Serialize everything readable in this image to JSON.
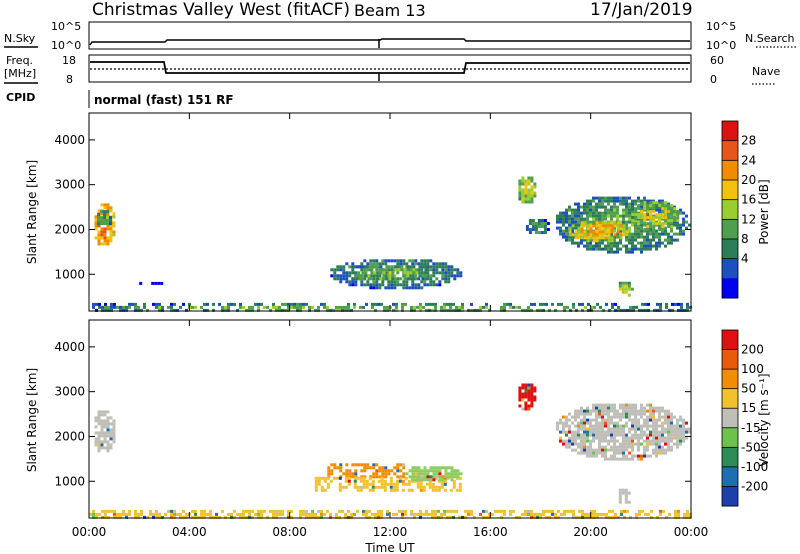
{
  "header": {
    "title": "Christmas Valley West (fitACF)",
    "beam": "Beam 13",
    "date": "17/Jan/2019"
  },
  "status_panels": {
    "nsky_label": "N.Sky",
    "nsearch_label": "N.Search",
    "noise_ticks": [
      "10^5",
      "10^0"
    ],
    "freq_label_1": "Freq.",
    "freq_label_2": "[MHz]",
    "freq_ticks": [
      "18",
      "8"
    ],
    "nave_label": "Nave",
    "nave_ticks": [
      "60",
      "0"
    ],
    "cpid_label": "CPID",
    "cpid_text": "normal (fast) 151 RF"
  },
  "chart_data": [
    {
      "type": "heatmap",
      "name": "power",
      "ylabel": "Slant Range [km]",
      "y_ticks": [
        1000,
        2000,
        3000,
        4000
      ],
      "ylim": [
        180,
        4600
      ],
      "colorbar": {
        "label": "Power [dB]",
        "ticks": [
          "28",
          "24",
          "20",
          "16",
          "12",
          "8",
          "4"
        ],
        "values": [
          28,
          24,
          20,
          16,
          12,
          8,
          4
        ],
        "range": [
          0,
          32
        ],
        "colors": [
          "#0000ee",
          "#1e4fbe",
          "#2e7d5a",
          "#4f9f4f",
          "#9acd32",
          "#f4c20d",
          "#f08c00",
          "#e8551a",
          "#dd1111"
        ]
      },
      "regions": [
        {
          "t0": 0.1,
          "t1": 1.0,
          "r0": 1650,
          "r1": 2650,
          "level": 26
        },
        {
          "t0": 0.2,
          "t1": 0.9,
          "r0": 2100,
          "r1": 2500,
          "level": 12
        },
        {
          "t0": 2.0,
          "t1": 3.0,
          "r0": 780,
          "r1": 830,
          "level": 6
        },
        {
          "t0": 0.0,
          "t1": 24.0,
          "r0": 200,
          "r1": 360,
          "level": 14
        },
        {
          "t0": 9.5,
          "t1": 14.8,
          "r0": 700,
          "r1": 1400,
          "level": 11
        },
        {
          "t0": 10.5,
          "t1": 13.5,
          "r0": 900,
          "r1": 1200,
          "level": 16
        },
        {
          "t0": 17.0,
          "t1": 17.8,
          "r0": 2600,
          "r1": 3250,
          "level": 18
        },
        {
          "t0": 18.5,
          "t1": 23.9,
          "r0": 1500,
          "r1": 2800,
          "level": 12
        },
        {
          "t0": 19.0,
          "t1": 21.5,
          "r0": 1750,
          "r1": 2250,
          "level": 23
        },
        {
          "t0": 21.5,
          "t1": 23.5,
          "r0": 2000,
          "r1": 2700,
          "level": 18
        },
        {
          "t0": 21.0,
          "t1": 21.6,
          "r0": 500,
          "r1": 900,
          "level": 18
        },
        {
          "t0": 17.3,
          "t1": 18.3,
          "r0": 1900,
          "r1": 2300,
          "level": 10
        }
      ]
    },
    {
      "type": "heatmap",
      "name": "velocity",
      "ylabel": "Slant Range [km]",
      "xlabel": "Time UT",
      "x_ticks": [
        "00:00",
        "04:00",
        "08:00",
        "12:00",
        "16:00",
        "20:00",
        "00:00"
      ],
      "xlim": [
        0,
        24
      ],
      "y_ticks": [
        1000,
        2000,
        3000,
        4000
      ],
      "ylim": [
        180,
        4600
      ],
      "colorbar": {
        "label": "Velocity [m s⁻¹]",
        "ticks": [
          "200",
          "100",
          "50",
          "15",
          "-15",
          "-50",
          "-100",
          "-200"
        ],
        "colors": [
          "#1c3faa",
          "#1f6fb0",
          "#2e8b57",
          "#6cc24a",
          "#bfbfb8",
          "#f2c12e",
          "#f28c00",
          "#ea5a0c",
          "#e01010"
        ]
      },
      "regions": [
        {
          "t0": 0.1,
          "t1": 1.0,
          "r0": 1650,
          "r1": 2650,
          "color": "#bfbfb8"
        },
        {
          "t0": 0.0,
          "t1": 24.0,
          "r0": 200,
          "r1": 360,
          "color": "#f2c12e"
        },
        {
          "t0": 9.5,
          "t1": 12.5,
          "r0": 1100,
          "r1": 1400,
          "color": "#f28c00"
        },
        {
          "t0": 9.0,
          "t1": 14.8,
          "r0": 800,
          "r1": 1100,
          "color": "#f2c12e"
        },
        {
          "t0": 12.5,
          "t1": 14.8,
          "r0": 1000,
          "r1": 1400,
          "color": "#8fcd60"
        },
        {
          "t0": 17.0,
          "t1": 17.8,
          "r0": 2600,
          "r1": 3250,
          "color": "#e01010"
        },
        {
          "t0": 18.5,
          "t1": 23.9,
          "r0": 1500,
          "r1": 2800,
          "color": "#bfbfb8"
        },
        {
          "t0": 21.0,
          "t1": 21.6,
          "r0": 500,
          "r1": 900,
          "color": "#bfbfb8"
        }
      ]
    }
  ]
}
